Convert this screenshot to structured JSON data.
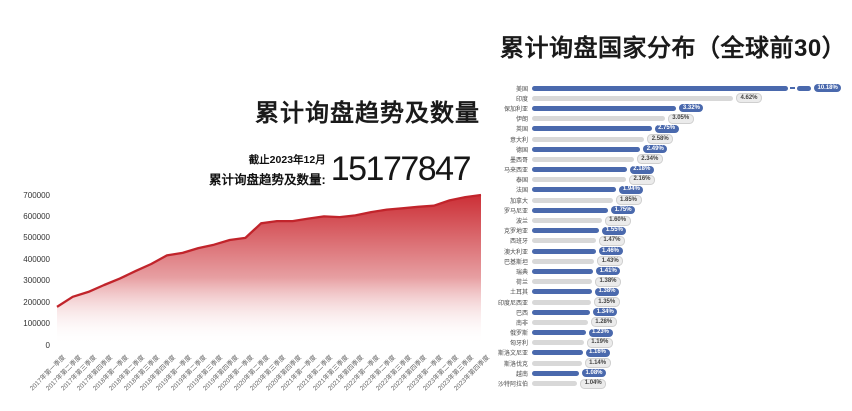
{
  "left_chart": {
    "title": "累计询盘趋势及数量",
    "asof": "截止2023年12月",
    "stat_label": "累计询盘趋势及数量:",
    "stat_value": "15177847"
  },
  "right_chart": {
    "title": "累计询盘国家分布（全球前30）"
  },
  "colors": {
    "area_line": "#c1242b",
    "area_fill_top": "#ca2930",
    "area_fill_bottom": "#ffffff",
    "bar_blue": "#4a69ad",
    "bar_gray": "#d8d8d8"
  },
  "chart_data": [
    {
      "id": "cumulative-inquiry-trend",
      "type": "area",
      "title": "累计询盘趋势及数量",
      "xlabel": "",
      "ylabel": "",
      "ylim": [
        0,
        700000
      ],
      "yticks": [
        700000,
        600000,
        500000,
        400000,
        300000,
        200000,
        100000,
        0
      ],
      "grid": false,
      "x": [
        "2017年第一季度",
        "2017年第二季度",
        "2017年第三季度",
        "2017年第四季度",
        "2018年第一季度",
        "2018年第二季度",
        "2018年第三季度",
        "2018年第四季度",
        "2019年第一季度",
        "2019年第二季度",
        "2019年第三季度",
        "2019年第四季度",
        "2020年第一季度",
        "2020年第二季度",
        "2020年第三季度",
        "2020年第四季度",
        "2021年第一季度",
        "2021年第二季度",
        "2021年第三季度",
        "2021年第四季度",
        "2022年第一季度",
        "2022年第二季度",
        "2022年第三季度",
        "2022年第四季度",
        "2023年第一季度",
        "2023年第二季度",
        "2023年第三季度",
        "2023年第四季度"
      ],
      "values": [
        178000,
        225000,
        248000,
        280000,
        310000,
        345000,
        378000,
        418000,
        430000,
        452000,
        468000,
        490000,
        500000,
        568000,
        578000,
        578000,
        590000,
        600000,
        597000,
        605000,
        620000,
        632000,
        638000,
        645000,
        650000,
        675000,
        690000,
        700000
      ]
    },
    {
      "id": "cumulative-inquiry-country-distribution",
      "type": "bar",
      "orientation": "horizontal",
      "title": "累计询盘国家分布（全球前30）",
      "unit": "%",
      "axis_break_on_first_bar": true,
      "bar_colors_alternate": [
        "#4a69ad",
        "#d8d8d8"
      ],
      "categories": [
        "美国",
        "印度",
        "保加利亚",
        "伊朗",
        "英国",
        "意大利",
        "德国",
        "墨西哥",
        "马来西亚",
        "泰国",
        "法国",
        "加拿大",
        "罗马尼亚",
        "波兰",
        "克罗地亚",
        "西班牙",
        "澳大利亚",
        "巴基斯坦",
        "瑞典",
        "荷兰",
        "土耳其",
        "印度尼西亚",
        "巴西",
        "南非",
        "俄罗斯",
        "匈牙利",
        "斯洛文尼亚",
        "斯洛伐克",
        "越南",
        "沙特阿拉伯"
      ],
      "values": [
        10.18,
        4.62,
        3.32,
        3.05,
        2.75,
        2.58,
        2.49,
        2.34,
        2.18,
        2.16,
        1.94,
        1.85,
        1.75,
        1.6,
        1.55,
        1.47,
        1.46,
        1.43,
        1.41,
        1.38,
        1.38,
        1.35,
        1.34,
        1.28,
        1.23,
        1.19,
        1.16,
        1.14,
        1.08,
        1.04
      ],
      "value_labels": [
        "10.18%",
        "4.62%",
        "3.32%",
        "3.05%",
        "2.75%",
        "2.58%",
        "2.49%",
        "2.34%",
        "2.18%",
        "2.16%",
        "1.94%",
        "1.85%",
        "1.75%",
        "1.60%",
        "1.55%",
        "1.47%",
        "1.46%",
        "1.43%",
        "1.41%",
        "1.38%",
        "1.38%",
        "1.35%",
        "1.34%",
        "1.28%",
        "1.23%",
        "1.19%",
        "1.16%",
        "1.14%",
        "1.08%",
        "1.04%"
      ]
    }
  ]
}
